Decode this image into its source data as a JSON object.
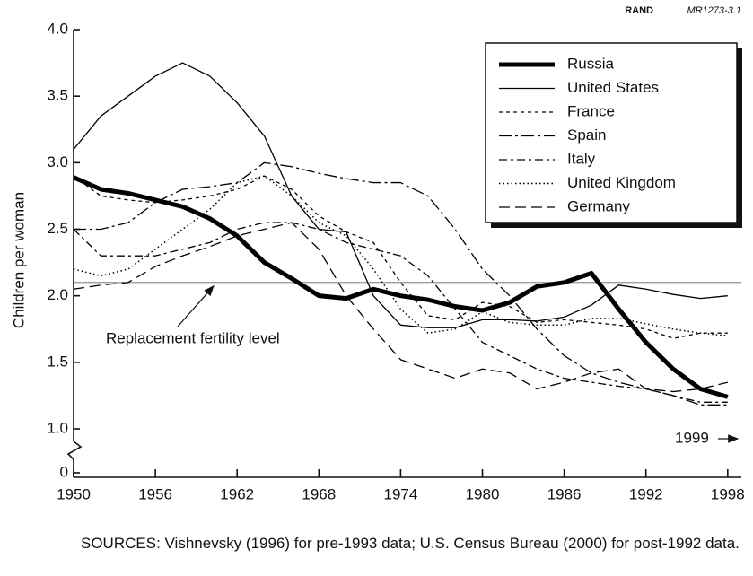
{
  "chart_data": {
    "type": "line",
    "header": {
      "org": "RAND",
      "code": "MR1273-3.1"
    },
    "ylabel": "Children per woman",
    "x": [
      1950,
      1952,
      1954,
      1956,
      1958,
      1960,
      1962,
      1964,
      1966,
      1968,
      1970,
      1972,
      1974,
      1976,
      1978,
      1980,
      1982,
      1984,
      1986,
      1988,
      1990,
      1992,
      1994,
      1996,
      1998
    ],
    "series": [
      {
        "name": "Russia",
        "color": "#000000",
        "width": 5,
        "dash": "none",
        "values": [
          2.89,
          2.8,
          2.77,
          2.72,
          2.67,
          2.58,
          2.45,
          2.25,
          2.13,
          2.0,
          1.98,
          2.05,
          2.0,
          1.97,
          1.92,
          1.89,
          1.95,
          2.07,
          2.1,
          2.17,
          1.9,
          1.65,
          1.45,
          1.3,
          1.24
        ]
      },
      {
        "name": "United States",
        "color": "#000000",
        "width": 1.3,
        "dash": "none",
        "values": [
          3.1,
          3.35,
          3.5,
          3.65,
          3.75,
          3.65,
          3.45,
          3.2,
          2.75,
          2.5,
          2.48,
          2.0,
          1.78,
          1.76,
          1.76,
          1.82,
          1.82,
          1.81,
          1.84,
          1.93,
          2.08,
          2.05,
          2.01,
          1.98,
          2.0
        ]
      },
      {
        "name": "France",
        "color": "#000000",
        "width": 1.3,
        "dash": "4 4",
        "values": [
          2.9,
          2.75,
          2.72,
          2.7,
          2.72,
          2.75,
          2.8,
          2.9,
          2.8,
          2.6,
          2.48,
          2.4,
          2.1,
          1.85,
          1.82,
          1.95,
          1.92,
          1.8,
          1.82,
          1.8,
          1.78,
          1.75,
          1.68,
          1.72,
          1.72
        ]
      },
      {
        "name": "Spain",
        "color": "#000000",
        "width": 1.3,
        "dash": "14 4 3 4",
        "values": [
          2.5,
          2.5,
          2.55,
          2.7,
          2.8,
          2.82,
          2.85,
          3.0,
          2.97,
          2.92,
          2.88,
          2.85,
          2.85,
          2.75,
          2.5,
          2.2,
          2.0,
          1.75,
          1.55,
          1.42,
          1.35,
          1.3,
          1.25,
          1.18,
          1.18
        ]
      },
      {
        "name": "Italy",
        "color": "#000000",
        "width": 1.3,
        "dash": "9 4 3 4",
        "values": [
          2.5,
          2.3,
          2.3,
          2.3,
          2.35,
          2.4,
          2.5,
          2.55,
          2.55,
          2.5,
          2.4,
          2.35,
          2.3,
          2.15,
          1.9,
          1.65,
          1.55,
          1.45,
          1.38,
          1.35,
          1.32,
          1.3,
          1.25,
          1.2,
          1.2
        ]
      },
      {
        "name": "United Kingdom",
        "color": "#000000",
        "width": 1.5,
        "dash": "1.5 3",
        "values": [
          2.2,
          2.15,
          2.2,
          2.35,
          2.5,
          2.65,
          2.85,
          2.9,
          2.75,
          2.55,
          2.45,
          2.2,
          1.9,
          1.72,
          1.75,
          1.88,
          1.8,
          1.78,
          1.78,
          1.83,
          1.83,
          1.79,
          1.75,
          1.72,
          1.7
        ]
      },
      {
        "name": "Germany",
        "color": "#000000",
        "width": 1.3,
        "dash": "12 6",
        "values": [
          2.05,
          2.08,
          2.1,
          2.22,
          2.3,
          2.37,
          2.45,
          2.5,
          2.55,
          2.35,
          2.0,
          1.75,
          1.52,
          1.45,
          1.38,
          1.45,
          1.42,
          1.3,
          1.35,
          1.42,
          1.45,
          1.3,
          1.28,
          1.3,
          1.35
        ]
      }
    ],
    "xlim": [
      1950,
      1999
    ],
    "xticks": [
      1950,
      1956,
      1962,
      1968,
      1974,
      1980,
      1986,
      1992,
      1998
    ],
    "ylim": [
      0,
      4
    ],
    "axis_break": [
      0,
      1
    ],
    "yticks": [
      0,
      {
        "value": 1,
        "label": "1.0"
      },
      {
        "value": 1.5,
        "label": "1.5"
      },
      {
        "value": 2,
        "label": "2.0"
      },
      {
        "value": 2.5,
        "label": "2.5"
      },
      {
        "value": 3,
        "label": "3.0"
      },
      {
        "value": 3.5,
        "label": "3.5"
      },
      {
        "value": 4,
        "label": "4.0"
      }
    ],
    "reference_line": {
      "value": 2.1,
      "label": "Replacement fertility level"
    },
    "annotation": "1999",
    "legend": "top-right",
    "source": "SOURCES:  Vishnevsky (1996) for pre-1993 data; U.S. Census Bureau (2000) for post-1992 data."
  }
}
